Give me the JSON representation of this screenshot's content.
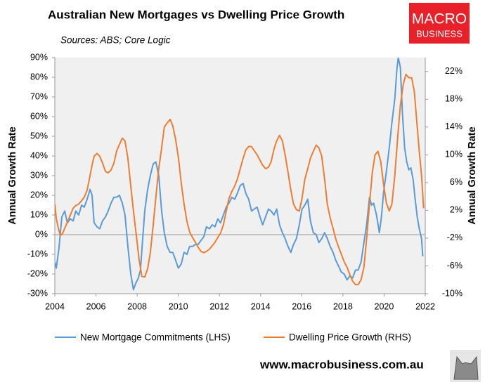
{
  "chart_data": {
    "type": "line",
    "title": "Australian New Mortgages vs Dwelling Price Growth",
    "subtitle": "Sources: ABS; Core Logic",
    "y_label": "Annual Growth Rate",
    "y2_label": "Annual Growth Rate",
    "xlim": [
      2004,
      2022
    ],
    "xticks": [
      2004,
      2006,
      2008,
      2010,
      2012,
      2014,
      2016,
      2018,
      2020,
      2022
    ],
    "ylim": [
      -30,
      90
    ],
    "yticks": [
      {
        "value": -30,
        "label": "-30%"
      },
      {
        "value": -20,
        "label": "-20%"
      },
      {
        "value": -10,
        "label": "-10%"
      },
      {
        "value": 0,
        "label": "0%"
      },
      {
        "value": 10,
        "label": "10%"
      },
      {
        "value": 20,
        "label": "20%"
      },
      {
        "value": 30,
        "label": "30%"
      },
      {
        "value": 40,
        "label": "40%"
      },
      {
        "value": 50,
        "label": "50%"
      },
      {
        "value": 60,
        "label": "60%"
      },
      {
        "value": 70,
        "label": "70%"
      },
      {
        "value": 80,
        "label": "80%"
      },
      {
        "value": 90,
        "label": "90%"
      }
    ],
    "y2lim": [
      -10,
      24
    ],
    "y2ticks": [
      {
        "value": -10,
        "label": "-10%"
      },
      {
        "value": -6,
        "label": "-6%"
      },
      {
        "value": -2,
        "label": "-2%"
      },
      {
        "value": 2,
        "label": "2%"
      },
      {
        "value": 6,
        "label": "6%"
      },
      {
        "value": 10,
        "label": "10%"
      },
      {
        "value": 14,
        "label": "14%"
      },
      {
        "value": 18,
        "label": "18%"
      },
      {
        "value": 22,
        "label": "22%"
      }
    ],
    "legend": "bottom",
    "series": [
      {
        "name": "New Mortgage Commitments (LHS)",
        "color": "#5b9bd5",
        "axis": "y",
        "x": [
          2004.0,
          2004.07,
          2004.2,
          2004.34,
          2004.48,
          2004.61,
          2004.75,
          2004.89,
          2005.02,
          2005.16,
          2005.3,
          2005.43,
          2005.57,
          2005.71,
          2005.81,
          2005.91,
          2006.05,
          2006.18,
          2006.32,
          2006.46,
          2006.59,
          2006.73,
          2006.87,
          2007.0,
          2007.14,
          2007.28,
          2007.41,
          2007.55,
          2007.69,
          2007.82,
          2007.92,
          2008.06,
          2008.16,
          2008.27,
          2008.37,
          2008.51,
          2008.64,
          2008.78,
          2008.91,
          2009.05,
          2009.19,
          2009.32,
          2009.46,
          2009.6,
          2009.73,
          2009.87,
          2010.0,
          2010.14,
          2010.28,
          2010.42,
          2010.55,
          2010.69,
          2010.83,
          2010.96,
          2011.1,
          2011.24,
          2011.37,
          2011.51,
          2011.65,
          2011.78,
          2011.92,
          2012.05,
          2012.19,
          2012.33,
          2012.46,
          2012.6,
          2012.74,
          2012.87,
          2013.01,
          2013.15,
          2013.28,
          2013.42,
          2013.56,
          2013.69,
          2013.83,
          2013.97,
          2014.1,
          2014.24,
          2014.38,
          2014.51,
          2014.65,
          2014.78,
          2014.92,
          2015.06,
          2015.19,
          2015.33,
          2015.47,
          2015.6,
          2015.74,
          2015.88,
          2016.01,
          2016.15,
          2016.29,
          2016.42,
          2016.56,
          2016.7,
          2016.83,
          2016.97,
          2017.11,
          2017.24,
          2017.38,
          2017.52,
          2017.65,
          2017.79,
          2017.92,
          2018.06,
          2018.2,
          2018.33,
          2018.47,
          2018.61,
          2018.74,
          2018.88,
          2019.02,
          2019.15,
          2019.29,
          2019.39,
          2019.49,
          2019.63,
          2019.77,
          2019.87,
          2019.97,
          2020.11,
          2020.25,
          2020.38,
          2020.52,
          2020.62,
          2020.69,
          2020.79,
          2020.89,
          2021.0,
          2021.1,
          2021.2,
          2021.3,
          2021.41,
          2021.51,
          2021.61,
          2021.71,
          2021.82,
          2021.88
        ],
        "values": [
          -14,
          -17,
          -7,
          9,
          12,
          6,
          8,
          7,
          12,
          10,
          15,
          14,
          18,
          23,
          20,
          6,
          4,
          3,
          7,
          9,
          12,
          16,
          19,
          19,
          20,
          16,
          10,
          -6,
          -20,
          -28,
          -25,
          -22,
          -18,
          -2,
          12,
          23,
          30,
          36,
          37,
          30,
          12,
          1,
          -6,
          -9,
          -9,
          -13,
          -17,
          -15,
          -9,
          -10,
          -6,
          -6,
          -5,
          -5,
          -3,
          -1,
          4,
          3,
          5,
          4,
          8,
          6,
          10,
          14,
          16,
          19,
          18,
          21,
          25,
          26,
          21,
          18,
          12,
          13,
          14,
          9,
          5,
          9,
          13,
          12,
          10,
          13,
          5,
          1,
          -2,
          -6,
          -9,
          -5,
          -2,
          5,
          13,
          15,
          18,
          7,
          1,
          0,
          -4,
          -2,
          1,
          -2,
          -6,
          -9,
          -13,
          -16,
          -19,
          -20,
          -23,
          -21,
          -22,
          -18,
          -18,
          -14,
          -4,
          5,
          19,
          15,
          16,
          10,
          1,
          9,
          21,
          32,
          44,
          57,
          69,
          84,
          90,
          85,
          62,
          44,
          37,
          33,
          34,
          28,
          18,
          9,
          3,
          -2,
          -11
        ]
      },
      {
        "name": "Dwelling Price Growth (RHS)",
        "color": "#ed7d31",
        "axis": "y2",
        "x": [
          2004.0,
          2004.07,
          2004.17,
          2004.27,
          2004.38,
          2004.48,
          2004.61,
          2004.75,
          2004.89,
          2005.02,
          2005.16,
          2005.3,
          2005.43,
          2005.57,
          2005.71,
          2005.81,
          2005.91,
          2006.05,
          2006.18,
          2006.32,
          2006.46,
          2006.59,
          2006.73,
          2006.87,
          2007.0,
          2007.14,
          2007.28,
          2007.41,
          2007.55,
          2007.69,
          2007.82,
          2007.96,
          2008.1,
          2008.23,
          2008.37,
          2008.51,
          2008.64,
          2008.78,
          2008.91,
          2009.05,
          2009.19,
          2009.32,
          2009.46,
          2009.6,
          2009.73,
          2009.87,
          2010.01,
          2010.14,
          2010.28,
          2010.42,
          2010.55,
          2010.69,
          2010.83,
          2010.96,
          2011.1,
          2011.24,
          2011.37,
          2011.51,
          2011.65,
          2011.78,
          2011.92,
          2012.05,
          2012.19,
          2012.33,
          2012.46,
          2012.6,
          2012.74,
          2012.87,
          2013.01,
          2013.15,
          2013.28,
          2013.42,
          2013.56,
          2013.69,
          2013.83,
          2013.97,
          2014.1,
          2014.24,
          2014.38,
          2014.51,
          2014.65,
          2014.78,
          2014.92,
          2015.06,
          2015.19,
          2015.33,
          2015.47,
          2015.6,
          2015.74,
          2015.88,
          2016.01,
          2016.15,
          2016.29,
          2016.42,
          2016.56,
          2016.7,
          2016.83,
          2016.97,
          2017.11,
          2017.24,
          2017.38,
          2017.52,
          2017.65,
          2017.79,
          2017.92,
          2018.06,
          2018.2,
          2018.33,
          2018.47,
          2018.61,
          2018.74,
          2018.88,
          2019.02,
          2019.15,
          2019.29,
          2019.43,
          2019.56,
          2019.7,
          2019.84,
          2019.97,
          2020.11,
          2020.25,
          2020.38,
          2020.52,
          2020.66,
          2020.79,
          2020.93,
          2021.06,
          2021.2,
          2021.34,
          2021.47,
          2021.61,
          2021.71,
          2021.82,
          2021.92
        ],
        "values": [
          2.9,
          0.9,
          -0.6,
          -1.6,
          -1.3,
          -0.6,
          0.3,
          1.3,
          2.3,
          2.7,
          2.9,
          3.4,
          3.9,
          4.9,
          7.0,
          8.5,
          9.8,
          10.2,
          9.8,
          8.8,
          7.6,
          7.4,
          7.8,
          8.8,
          10.5,
          11.5,
          12.4,
          12.0,
          9.5,
          5.5,
          1.9,
          -1.6,
          -5.2,
          -7.5,
          -7.6,
          -6.4,
          -4.1,
          -0.1,
          3.9,
          8.0,
          11.0,
          14.0,
          14.6,
          15.1,
          14.2,
          12.2,
          9.5,
          6.0,
          2.9,
          0.4,
          -1.1,
          -1.9,
          -2.6,
          -3.3,
          -3.9,
          -4.1,
          -3.9,
          -3.6,
          -3.1,
          -2.6,
          -1.9,
          -1.3,
          -0.1,
          1.9,
          3.7,
          4.7,
          5.5,
          6.5,
          8.0,
          9.5,
          10.7,
          11.2,
          11.2,
          10.6,
          10.0,
          9.2,
          8.5,
          8.0,
          8.2,
          9.0,
          10.8,
          12.0,
          12.8,
          12.0,
          10.0,
          7.5,
          4.9,
          2.9,
          2.1,
          1.9,
          3.7,
          6.5,
          8.0,
          9.5,
          10.5,
          11.4,
          11.0,
          9.8,
          6.5,
          2.9,
          0.9,
          -0.6,
          -2.1,
          -3.3,
          -4.3,
          -5.4,
          -6.2,
          -7.2,
          -8.2,
          -8.7,
          -8.7,
          -8.0,
          -6.2,
          -2.1,
          2.9,
          7.5,
          10.0,
          10.5,
          9.0,
          5.8,
          3.1,
          1.9,
          2.9,
          7.0,
          12.5,
          17.1,
          20.1,
          21.6,
          21.1,
          21.1,
          19.1,
          14.0,
          10.5,
          7.0,
          2.3
        ]
      }
    ]
  },
  "branding": {
    "logo_top": "MACRO",
    "logo_bottom": "BUSINESS",
    "website": "www.macrobusiness.com.au"
  }
}
